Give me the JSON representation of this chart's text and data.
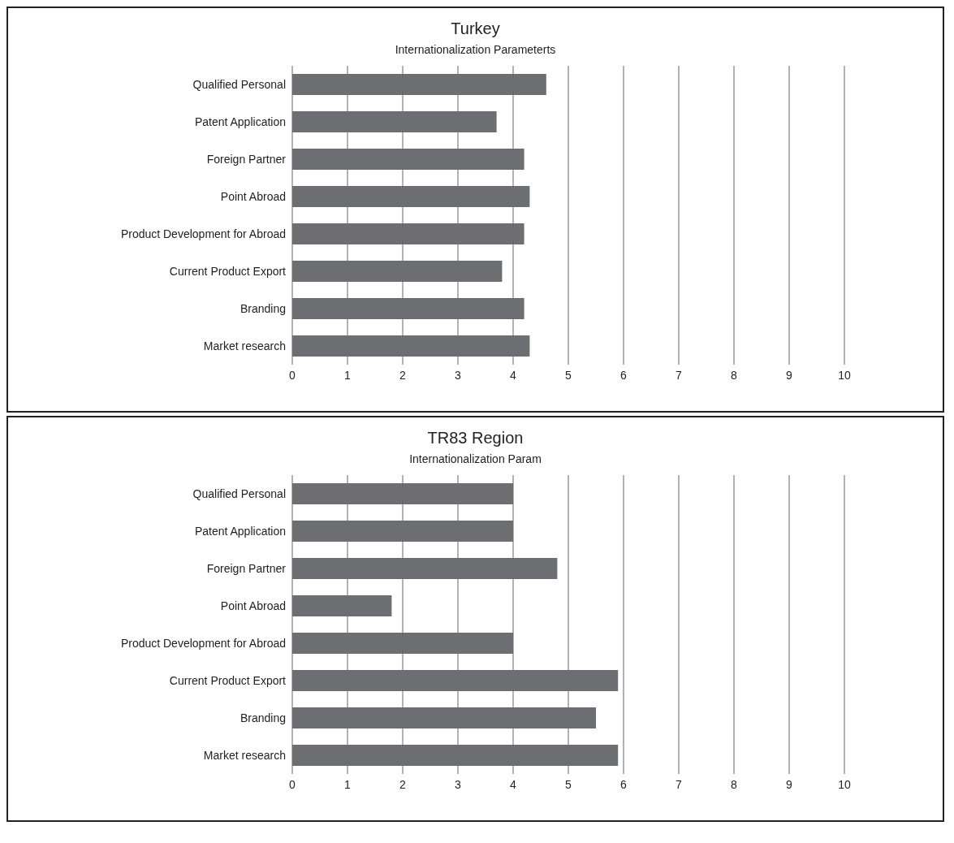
{
  "chart_data": [
    {
      "type": "bar",
      "orientation": "horizontal",
      "title": "Turkey",
      "subtitle": "Internationalization Parameterts",
      "categories": [
        "Qualified Personal",
        "Patent Application",
        "Foreign Partner",
        "Point Abroad",
        "Product Development for Abroad",
        "Current Product Export",
        "Branding",
        "Market research"
      ],
      "values": [
        4.6,
        3.7,
        4.2,
        4.3,
        4.2,
        3.8,
        4.2,
        4.3
      ],
      "color": "#6d6e71",
      "xlim": [
        0,
        10
      ],
      "xticks": [
        0,
        1,
        2,
        3,
        4,
        5,
        6,
        7,
        8,
        9,
        10
      ],
      "grid": "x"
    },
    {
      "type": "bar",
      "orientation": "horizontal",
      "title": "TR83 Region",
      "subtitle": "Internationalization Param",
      "categories": [
        "Qualified Personal",
        "Patent Application",
        "Foreign Partner",
        "Point Abroad",
        "Product Development for Abroad",
        "Current Product Export",
        "Branding",
        "Market research"
      ],
      "values": [
        4.0,
        4.0,
        4.8,
        1.8,
        4.0,
        5.9,
        5.5,
        5.9
      ],
      "color": "#6d6e71",
      "xlim": [
        0,
        10
      ],
      "xticks": [
        0,
        1,
        2,
        3,
        4,
        5,
        6,
        7,
        8,
        9,
        10
      ],
      "grid": "x"
    }
  ]
}
